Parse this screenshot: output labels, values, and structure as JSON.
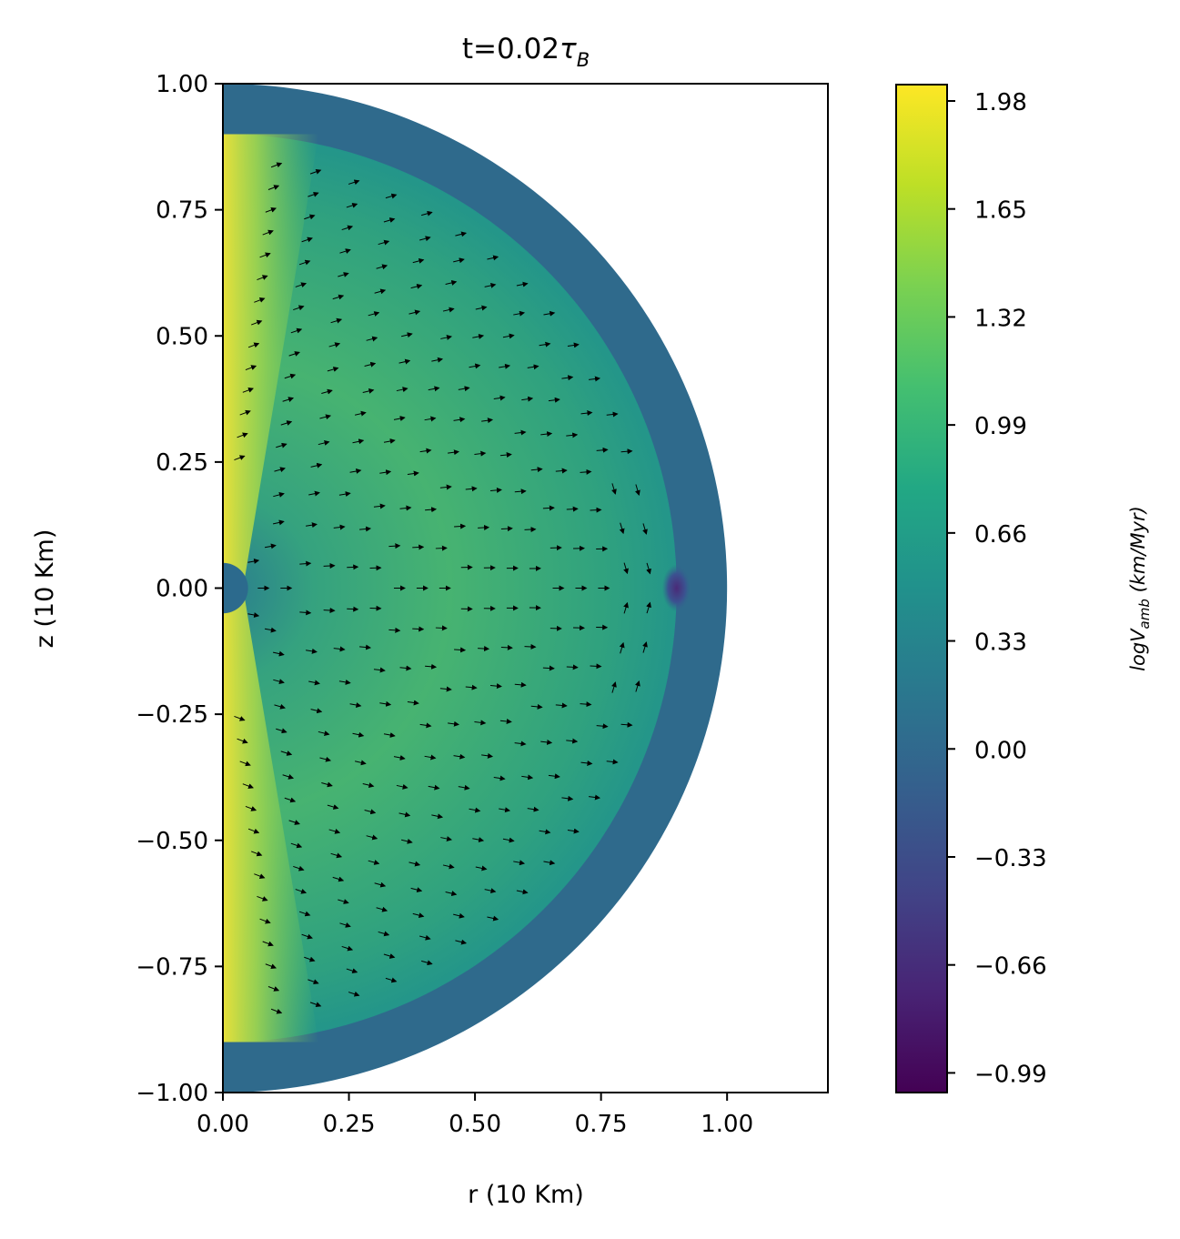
{
  "chart_data": {
    "type": "heatmap",
    "title": {
      "main": "t=0.02",
      "symbol": "τ",
      "subscript": "B"
    },
    "xlabel": "r (10 Km)",
    "ylabel": "z (10 Km)",
    "xlim": [
      0.0,
      1.2
    ],
    "ylim": [
      -1.0,
      1.0
    ],
    "x_ticks": [
      0.0,
      0.25,
      0.5,
      0.75,
      1.0
    ],
    "x_tick_labels": [
      "0.00",
      "0.25",
      "0.50",
      "0.75",
      "1.00"
    ],
    "y_ticks": [
      1.0,
      0.75,
      0.5,
      0.25,
      0.0,
      -0.25,
      -0.5,
      -0.75,
      -1.0
    ],
    "y_tick_labels": [
      "1.00",
      "0.75",
      "0.50",
      "0.25",
      "0.00",
      "−0.25",
      "−0.50",
      "−0.75",
      "−1.00"
    ],
    "domain": {
      "shape": "half-disk",
      "outer_radius": 1.0,
      "crust_inner_radius": 0.9,
      "inner_core_radius": 0.05
    },
    "field": {
      "name": "logV_amb",
      "crust_value": 0.2,
      "axis_peak_value": 1.98,
      "min_value": -0.99,
      "min_location": {
        "r": 0.9,
        "z": 0.0
      }
    },
    "vector_field": {
      "description_visible": "quiver arrows",
      "pattern": "radial outward, converging toward r≈0.9 near equator"
    },
    "colorbar": {
      "colormap": "viridis",
      "range": [
        -1.05,
        2.03
      ],
      "ticks": [
        1.98,
        1.65,
        1.32,
        0.99,
        0.66,
        0.33,
        0.0,
        -0.33,
        -0.66,
        -0.99
      ],
      "tick_labels": [
        "1.98",
        "1.65",
        "1.32",
        "0.99",
        "0.66",
        "0.33",
        "0.00",
        "−0.33",
        "−0.66",
        "−0.99"
      ],
      "label": {
        "base": "logV",
        "subscript": "amb",
        "units": " (km/Myr)"
      }
    },
    "colors": {
      "crust": "#2f6a8c",
      "core_dark": "#2c6a8d",
      "bulk_green": "#3aa679",
      "axis_yellow": "#f0e325"
    }
  }
}
